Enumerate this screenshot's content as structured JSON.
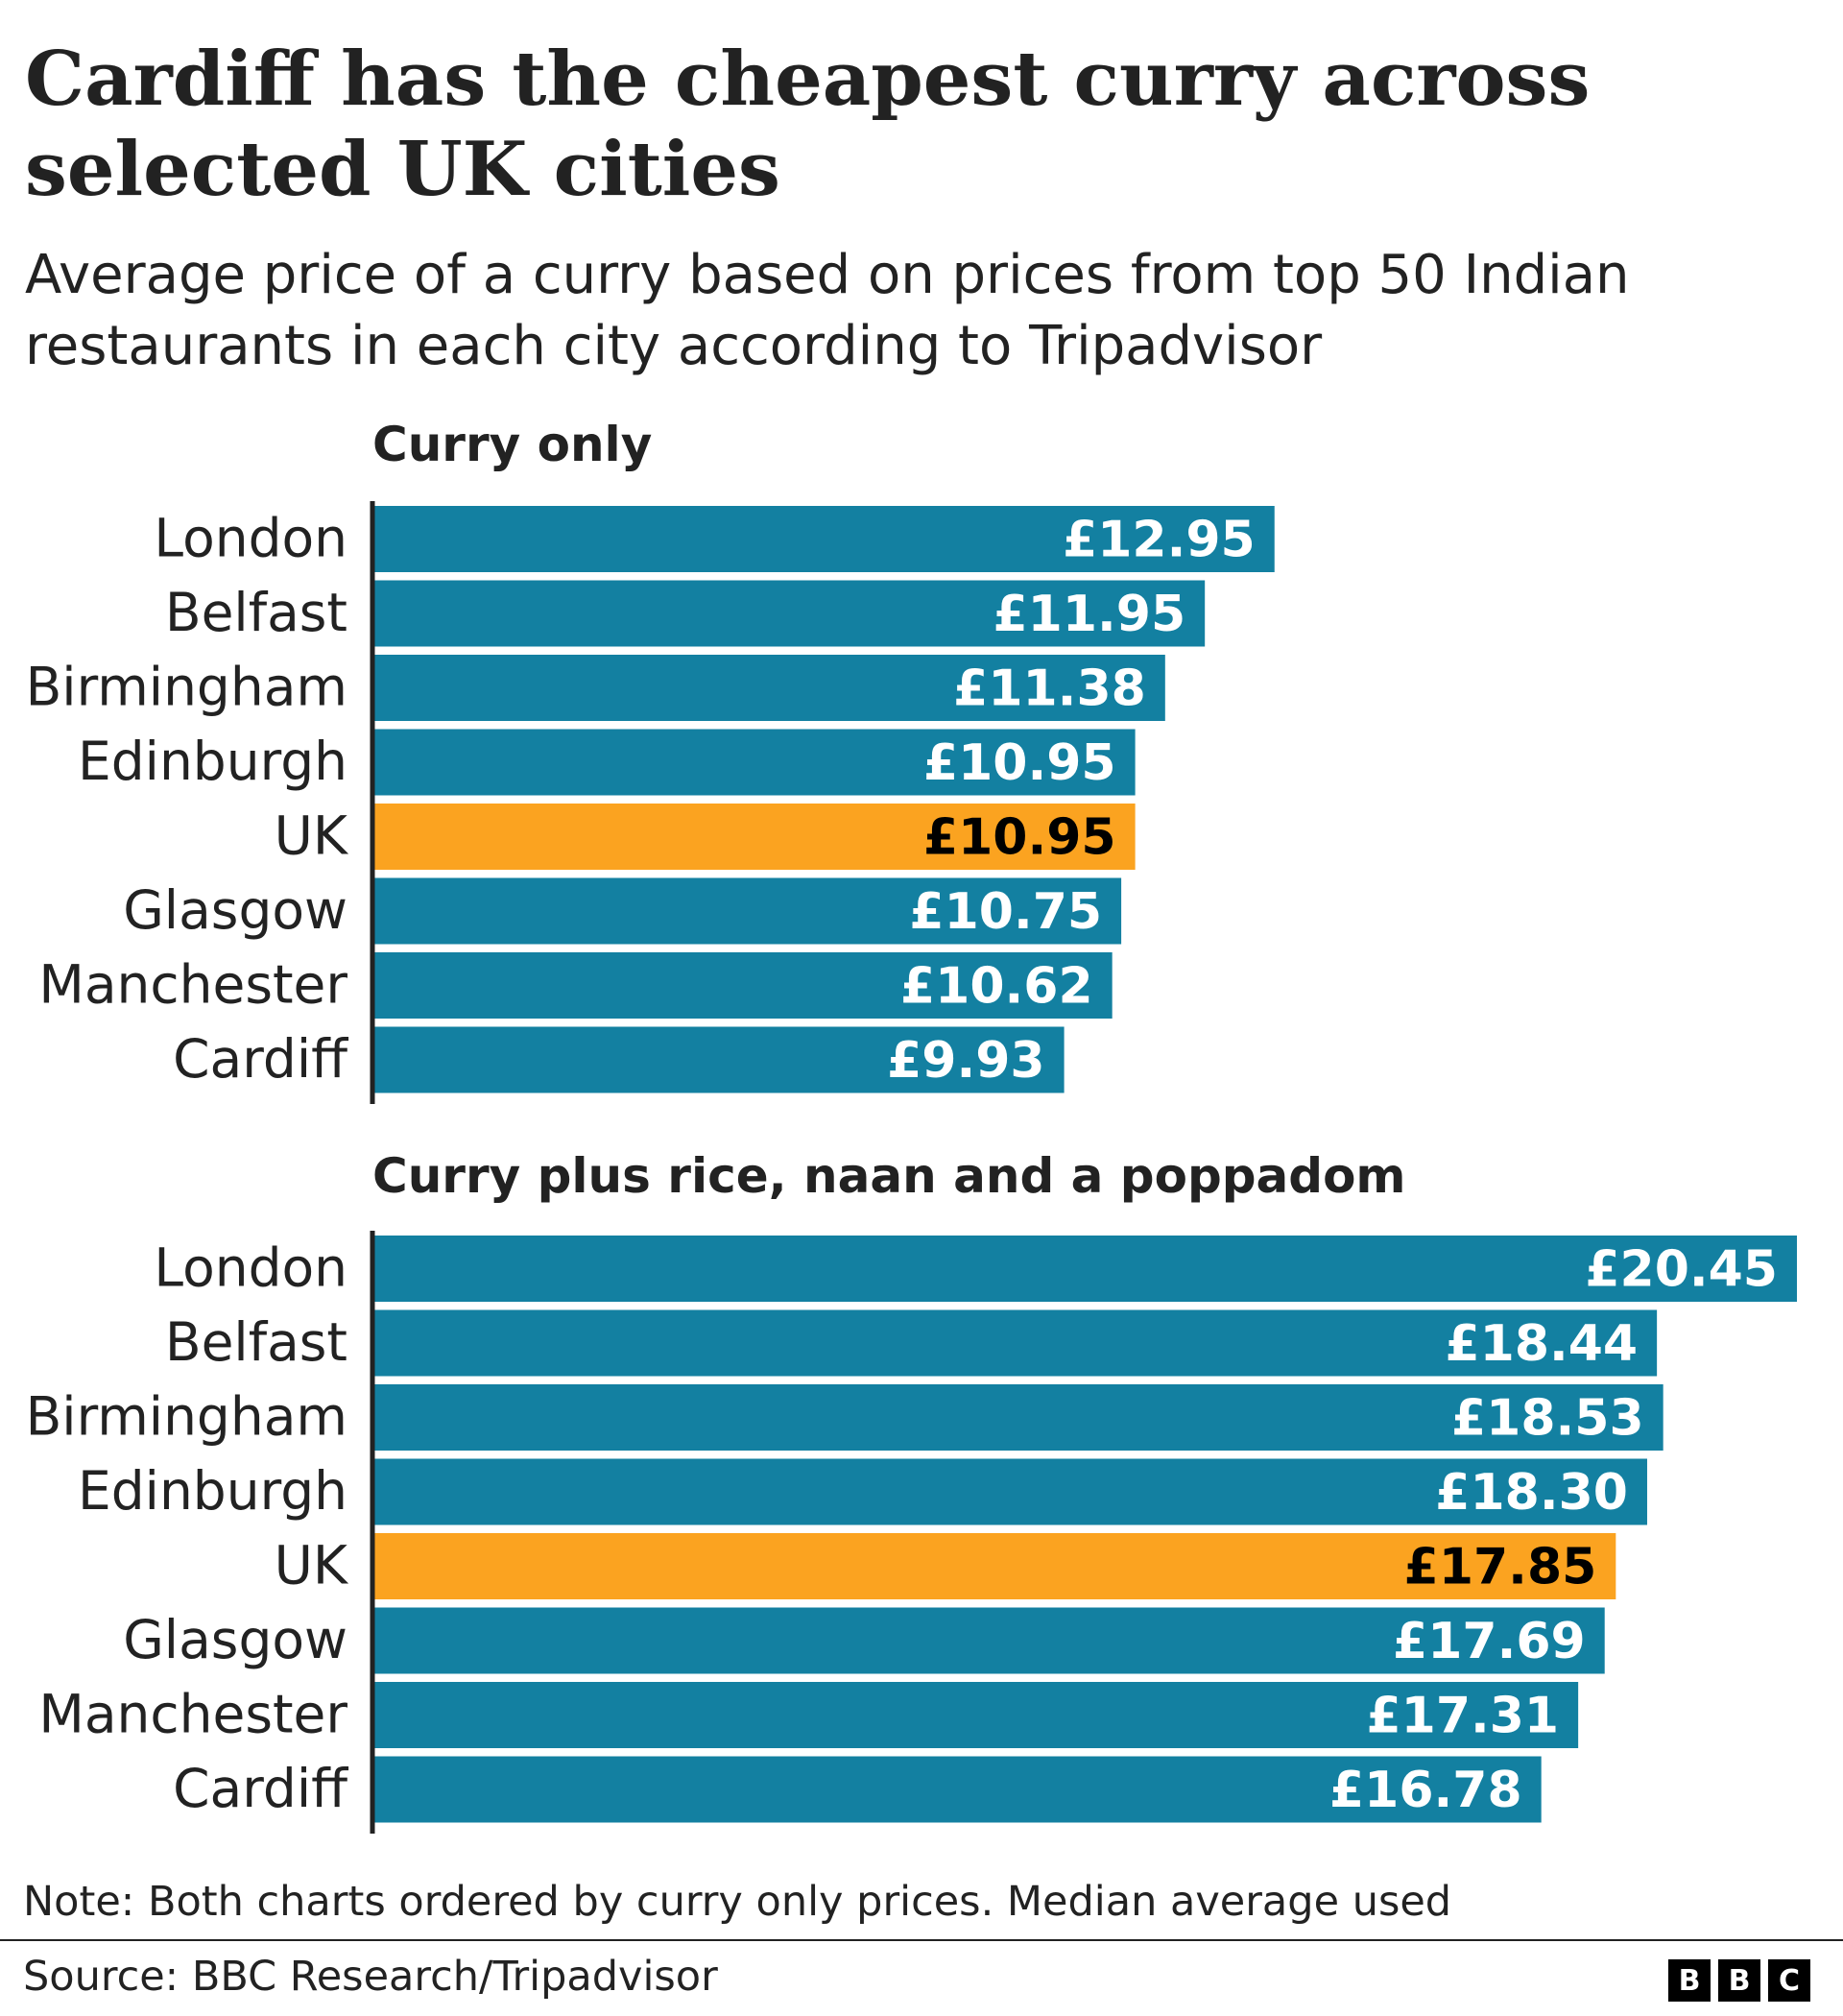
{
  "title": "Cardiff has the cheapest curry across selected UK cities",
  "subtitle": "Average price of a curry based on prices from top 50 Indian restaurants in each city according to Tripadvisor",
  "note": "Note: Both charts ordered by curry only prices. Median average used",
  "source": "Source: BBC Research/Tripadvisor",
  "logo": [
    "B",
    "B",
    "C"
  ],
  "colors": {
    "bar": "#1380a1",
    "highlight": "#fba320",
    "axis": "#222222",
    "label_light": "#ffffff",
    "label_dark": "#000000"
  },
  "chart_data": [
    {
      "type": "bar",
      "orientation": "horizontal",
      "title": "Curry only",
      "categories": [
        "London",
        "Belfast",
        "Birmingham",
        "Edinburgh",
        "UK",
        "Glasgow",
        "Manchester",
        "Cardiff"
      ],
      "values": [
        12.95,
        11.95,
        11.38,
        10.95,
        10.95,
        10.75,
        10.62,
        9.93
      ],
      "labels": [
        "£12.95",
        "£11.95",
        "£11.38",
        "£10.95",
        "£10.95",
        "£10.75",
        "£10.62",
        "£9.93"
      ],
      "highlight": "UK",
      "xlim": [
        0,
        20.45
      ],
      "xlabel": "",
      "ylabel": ""
    },
    {
      "type": "bar",
      "orientation": "horizontal",
      "title": "Curry plus rice, naan and a poppadom",
      "categories": [
        "London",
        "Belfast",
        "Birmingham",
        "Edinburgh",
        "UK",
        "Glasgow",
        "Manchester",
        "Cardiff"
      ],
      "values": [
        20.45,
        18.44,
        18.53,
        18.3,
        17.85,
        17.69,
        17.31,
        16.78
      ],
      "labels": [
        "£20.45",
        "£18.44",
        "£18.53",
        "£18.30",
        "£17.85",
        "£17.69",
        "£17.31",
        "£16.78"
      ],
      "highlight": "UK",
      "xlim": [
        0,
        20.45
      ],
      "xlabel": "",
      "ylabel": ""
    }
  ]
}
